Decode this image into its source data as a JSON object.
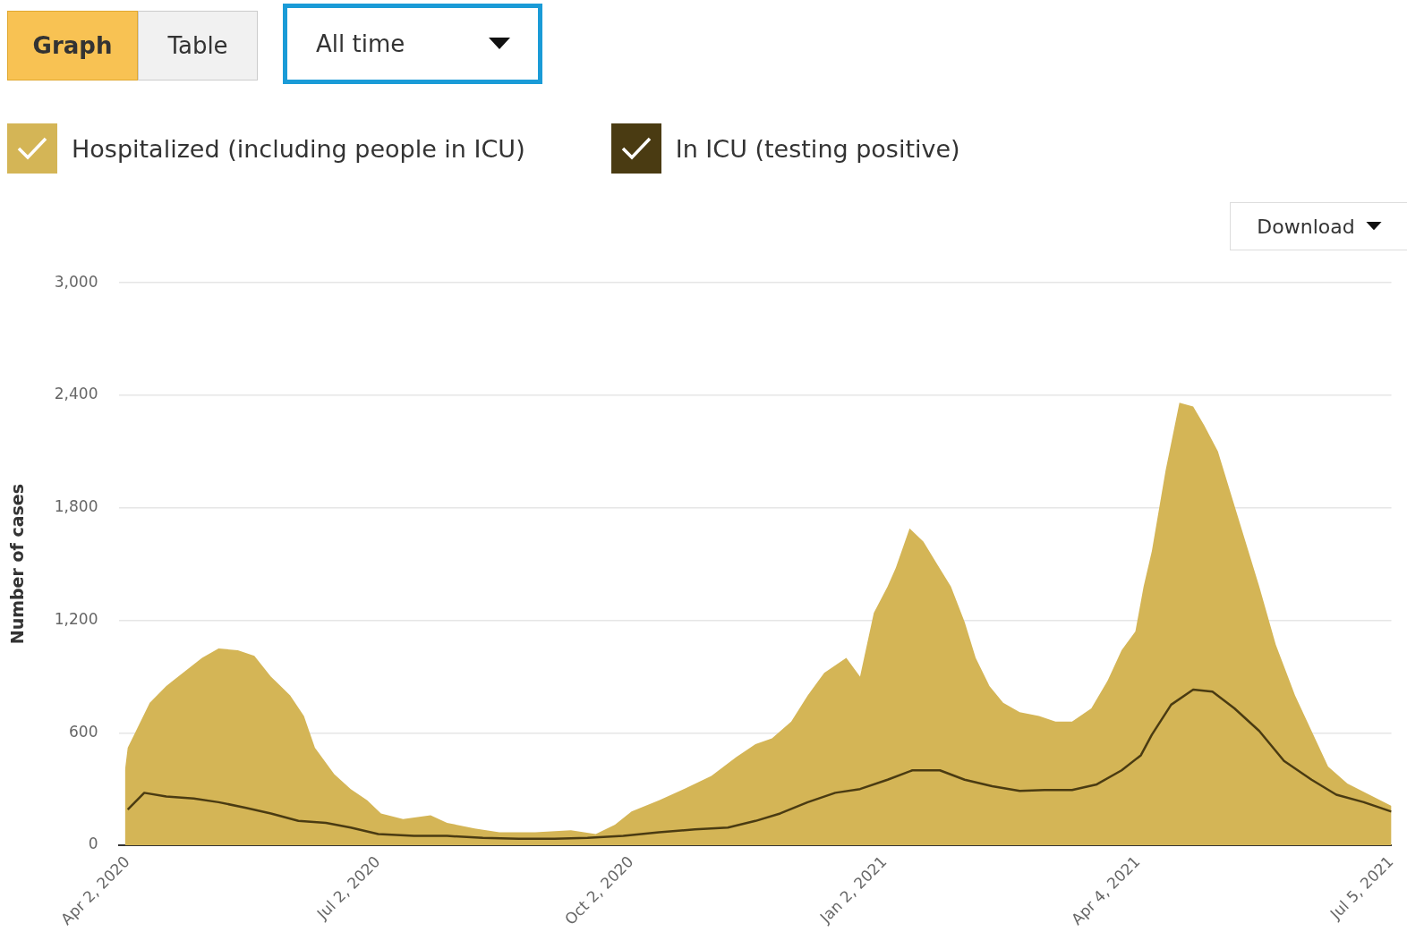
{
  "chart_data": {
    "type": "area",
    "ylabel": "Number of cases",
    "legend": "top left",
    "grid": "y",
    "marker": "none",
    "line_style": "solid",
    "annotations": [
      "Graph",
      "Table",
      "All time",
      "Download"
    ],
    "xlim": [
      "2020-03-30",
      "2021-07-05"
    ],
    "xticks": [
      {
        "value": "2020-04-02",
        "label": "Apr 2, 2020"
      },
      {
        "value": "2020-07-02",
        "label": "Jul 2, 2020"
      },
      {
        "value": "2020-10-02",
        "label": "Oct 2, 2020"
      },
      {
        "value": "2021-01-02",
        "label": "Jan 2, 2021"
      },
      {
        "value": "2021-04-04",
        "label": "Apr 4, 2021"
      },
      {
        "value": "2021-07-05",
        "label": "Jul 5, 2021"
      }
    ],
    "ylim": [
      0,
      3000
    ],
    "yticks": [
      0,
      600,
      {
        "value": 1200,
        "label": "1,200"
      },
      {
        "value": 1800,
        "label": "1,800"
      },
      {
        "value": 2400,
        "label": "2,400"
      },
      {
        "value": 3000,
        "label": "3,000"
      }
    ],
    "series": [
      {
        "name": "Hospitalized (including people in ICU)",
        "type": "area",
        "color": "#d4b556",
        "x": [
          "2020-04-01",
          "2020-04-02",
          "2020-04-05",
          "2020-04-10",
          "2020-04-16",
          "2020-04-23",
          "2020-04-29",
          "2020-05-05",
          "2020-05-12",
          "2020-05-18",
          "2020-05-24",
          "2020-05-31",
          "2020-06-05",
          "2020-06-09",
          "2020-06-16",
          "2020-06-22",
          "2020-06-28",
          "2020-07-03",
          "2020-07-11",
          "2020-07-21",
          "2020-07-27",
          "2020-08-06",
          "2020-08-15",
          "2020-08-28",
          "2020-09-10",
          "2020-09-19",
          "2020-09-26",
          "2020-10-02",
          "2020-10-12",
          "2020-10-21",
          "2020-10-31",
          "2020-11-09",
          "2020-11-16",
          "2020-11-22",
          "2020-11-29",
          "2020-12-05",
          "2020-12-11",
          "2020-12-19",
          "2020-12-24",
          "2020-12-29",
          "2021-01-03",
          "2021-01-06",
          "2021-01-11",
          "2021-01-16",
          "2021-01-21",
          "2021-01-26",
          "2021-01-31",
          "2021-02-04",
          "2021-02-09",
          "2021-02-14",
          "2021-02-20",
          "2021-02-27",
          "2021-03-05",
          "2021-03-11",
          "2021-03-18",
          "2021-03-24",
          "2021-03-29",
          "2021-04-03",
          "2021-04-06",
          "2021-04-09",
          "2021-04-14",
          "2021-04-19",
          "2021-04-24",
          "2021-04-28",
          "2021-05-03",
          "2021-05-08",
          "2021-05-13",
          "2021-05-18",
          "2021-05-24",
          "2021-05-31",
          "2021-06-06",
          "2021-06-12",
          "2021-06-19",
          "2021-06-27",
          "2021-07-05"
        ],
        "values": [
          400,
          520,
          610,
          760,
          850,
          930,
          1000,
          1050,
          1040,
          1010,
          900,
          800,
          690,
          520,
          380,
          300,
          240,
          170,
          140,
          160,
          120,
          90,
          70,
          70,
          80,
          60,
          110,
          180,
          240,
          300,
          370,
          470,
          540,
          570,
          660,
          800,
          920,
          1000,
          900,
          1240,
          1380,
          1480,
          1690,
          1620,
          1500,
          1380,
          1190,
          1000,
          850,
          760,
          710,
          690,
          660,
          660,
          730,
          880,
          1040,
          1140,
          1380,
          1570,
          2000,
          2360,
          2340,
          2240,
          2100,
          1860,
          1620,
          1380,
          1070,
          800,
          610,
          420,
          330,
          270,
          210
        ]
      },
      {
        "name": "In ICU (testing positive)",
        "type": "line",
        "color": "#4a3b12",
        "x": [
          "2020-04-02",
          "2020-04-08",
          "2020-04-16",
          "2020-04-26",
          "2020-05-05",
          "2020-05-15",
          "2020-05-24",
          "2020-06-03",
          "2020-06-13",
          "2020-06-22",
          "2020-07-02",
          "2020-07-15",
          "2020-07-27",
          "2020-08-09",
          "2020-08-22",
          "2020-09-04",
          "2020-09-16",
          "2020-09-29",
          "2020-10-12",
          "2020-10-25",
          "2020-11-06",
          "2020-11-16",
          "2020-11-25",
          "2020-12-05",
          "2020-12-15",
          "2020-12-24",
          "2021-01-03",
          "2021-01-12",
          "2021-01-22",
          "2021-01-31",
          "2021-02-10",
          "2021-02-20",
          "2021-03-01",
          "2021-03-11",
          "2021-03-20",
          "2021-03-29",
          "2021-04-05",
          "2021-04-09",
          "2021-04-16",
          "2021-04-24",
          "2021-05-01",
          "2021-05-09",
          "2021-05-18",
          "2021-05-27",
          "2021-06-06",
          "2021-06-15",
          "2021-06-25",
          "2021-07-05"
        ],
        "values": [
          190,
          280,
          260,
          250,
          230,
          200,
          170,
          130,
          120,
          95,
          60,
          50,
          50,
          40,
          35,
          35,
          40,
          50,
          70,
          85,
          95,
          130,
          170,
          230,
          280,
          300,
          350,
          400,
          400,
          350,
          315,
          290,
          295,
          295,
          325,
          400,
          480,
          590,
          750,
          830,
          820,
          730,
          610,
          450,
          350,
          270,
          230,
          180
        ]
      }
    ]
  }
}
